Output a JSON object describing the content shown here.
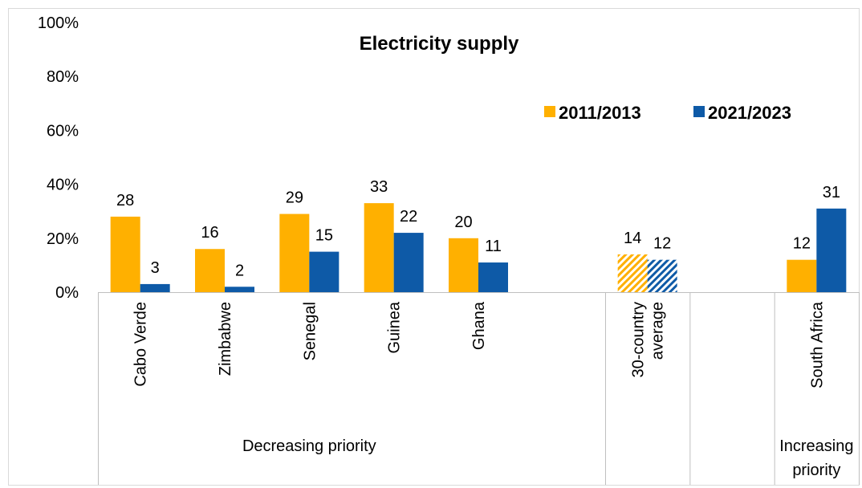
{
  "chart_data": {
    "type": "bar",
    "title": "Electricity supply",
    "ylim": [
      0,
      100
    ],
    "yticks": [
      "0%",
      "20%",
      "40%",
      "60%",
      "80%",
      "100%"
    ],
    "grid": false,
    "legend_position": "top-right",
    "categories": [
      "Cabo Verde",
      "Zimbabwe",
      "Senegal",
      "Guinea",
      "Ghana",
      "",
      "30-country average",
      "",
      "South Africa"
    ],
    "series": [
      {
        "name": "2011/2013",
        "values": [
          28,
          16,
          29,
          33,
          20,
          null,
          14,
          null,
          12
        ]
      },
      {
        "name": "2021/2023",
        "values": [
          3,
          2,
          15,
          22,
          11,
          null,
          12,
          null,
          31
        ]
      }
    ],
    "hatched_categories": [
      "30-country average"
    ],
    "group_labels": [
      "Decreasing priority",
      "Increasing priority"
    ],
    "colors": {
      "2011/2013": "#FFB000",
      "2021/2023": "#0E5AA7"
    }
  }
}
